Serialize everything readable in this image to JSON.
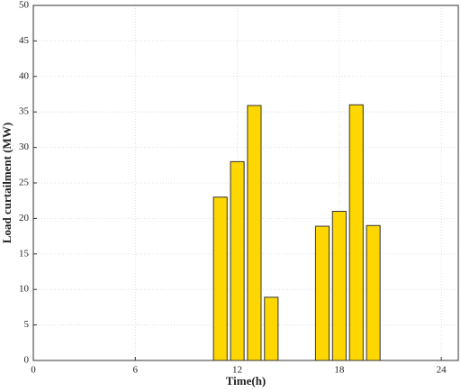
{
  "chart_data": {
    "type": "bar",
    "x_label": "Time(h)",
    "y_label": "Load curtailment (MW)",
    "x": [
      11,
      12,
      13,
      14,
      17,
      18,
      19,
      20
    ],
    "values": [
      23,
      28,
      35.9,
      8.9,
      18.9,
      21,
      36,
      19
    ],
    "color": "#ffd700",
    "xlim": [
      0,
      25
    ],
    "xticks": [
      0,
      6,
      12,
      18,
      24
    ],
    "ylim": [
      0,
      50
    ],
    "yticks": [
      0,
      5,
      10,
      15,
      20,
      25,
      30,
      35,
      40,
      45,
      50
    ],
    "grid": true
  }
}
